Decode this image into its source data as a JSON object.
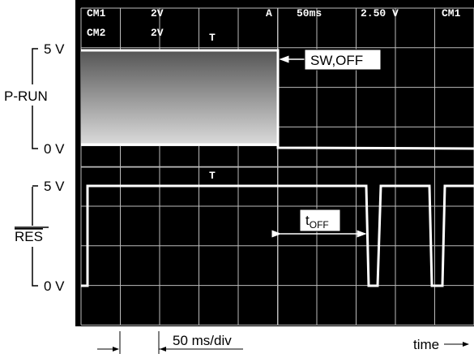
{
  "scope": {
    "header": {
      "row1": [
        "CM1",
        "2V",
        "A",
        "50ms",
        "2.50 V",
        "CM1"
      ],
      "row2": [
        "CM2",
        "2V"
      ]
    },
    "channels": [
      {
        "label": "P-RUN",
        "high": "5 V",
        "low": "0 V"
      },
      {
        "label": "RES",
        "high": "5 V",
        "low": "0 V"
      }
    ],
    "annotations": {
      "switch": "SW,OFF",
      "t_off": {
        "main": "t",
        "sub": "OFF"
      }
    },
    "footer": {
      "timebase": "50 ms/div",
      "axis": "time"
    }
  }
}
